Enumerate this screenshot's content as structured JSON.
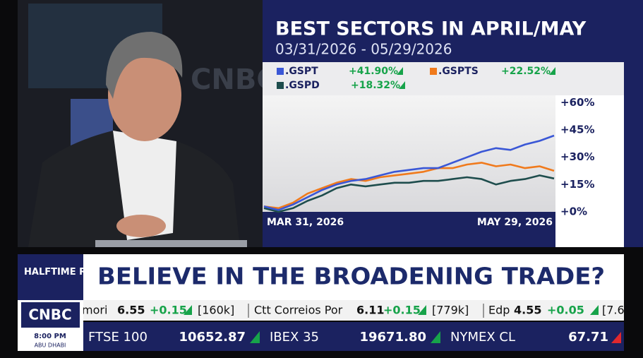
{
  "chart_data": {
    "type": "line",
    "title": "BEST SECTORS IN APRIL/MAY",
    "subtitle": "03/31/2026 - 05/29/2026",
    "categories": [
      "MAR 31, 2026",
      null,
      null,
      null,
      null,
      null,
      null,
      null,
      null,
      null,
      null,
      null,
      null,
      null,
      null,
      null,
      null,
      null,
      null,
      null,
      "MAY 29, 2026"
    ],
    "series": [
      {
        "name": ".GSPT",
        "color": "#3a57d6",
        "values": [
          3,
          1,
          4,
          8,
          12,
          15,
          17,
          18,
          20,
          22,
          23,
          24,
          24,
          27,
          30,
          33,
          35,
          34,
          37,
          39,
          41.9
        ],
        "value_labels": [
          null,
          null,
          null,
          null,
          null,
          null,
          null,
          null,
          null,
          null,
          null,
          null,
          null,
          null,
          null,
          null,
          null,
          null,
          null,
          null,
          "+41.90%"
        ]
      },
      {
        "name": ".GSPTS",
        "color": "#f07a1c",
        "values": [
          3,
          2,
          5,
          10,
          13,
          16,
          18,
          17,
          19,
          20,
          21,
          22,
          24,
          24,
          26,
          27,
          25,
          26,
          24,
          25,
          22.52
        ],
        "value_labels": [
          null,
          null,
          null,
          null,
          null,
          null,
          null,
          null,
          null,
          null,
          null,
          null,
          null,
          null,
          null,
          null,
          null,
          null,
          null,
          null,
          "+22.52%"
        ]
      },
      {
        "name": ".GSPD",
        "color": "#1e4d4d",
        "values": [
          2,
          0,
          2,
          6,
          9,
          13,
          15,
          14,
          15,
          16,
          16,
          17,
          17,
          18,
          19,
          18,
          15,
          17,
          18,
          20,
          18.32
        ],
        "value_labels": [
          null,
          null,
          null,
          null,
          null,
          null,
          null,
          null,
          null,
          null,
          null,
          null,
          null,
          null,
          null,
          null,
          null,
          null,
          null,
          null,
          "+18.32%"
        ]
      }
    ],
    "ylim": [
      0,
      64
    ],
    "yticks": [
      {
        "value": 0,
        "label": "+0%"
      },
      {
        "value": 15,
        "label": "+15%"
      },
      {
        "value": 30,
        "label": "+30%"
      },
      {
        "value": 45,
        "label": "+45%"
      },
      {
        "value": 60,
        "label": "+60%"
      }
    ]
  },
  "banner": {
    "show": "HALFTIME REPORT",
    "headline": "BELIEVE IN THE BROADENING TRADE?"
  },
  "logo": {
    "brand": "CNBC",
    "time": "8:00 PM",
    "place": "ABU DHABI"
  },
  "ticker": {
    "stocks": [
      {
        "name": "mori",
        "price": "6.55",
        "change": "+0.15",
        "volume": "[160k]"
      },
      {
        "name": "Ctt Correios Por",
        "price": "6.11",
        "change": "+0.15",
        "volume": "[779k]"
      },
      {
        "name": "Edp",
        "price": "4.55",
        "change": "+0.05",
        "volume": "[7.6"
      }
    ],
    "indices": [
      {
        "name": "FTSE 100",
        "price": "10652.87"
      },
      {
        "name": "IBEX 35",
        "price": "19671.80"
      },
      {
        "name": "NYMEX CL",
        "price": "67.71"
      }
    ]
  }
}
